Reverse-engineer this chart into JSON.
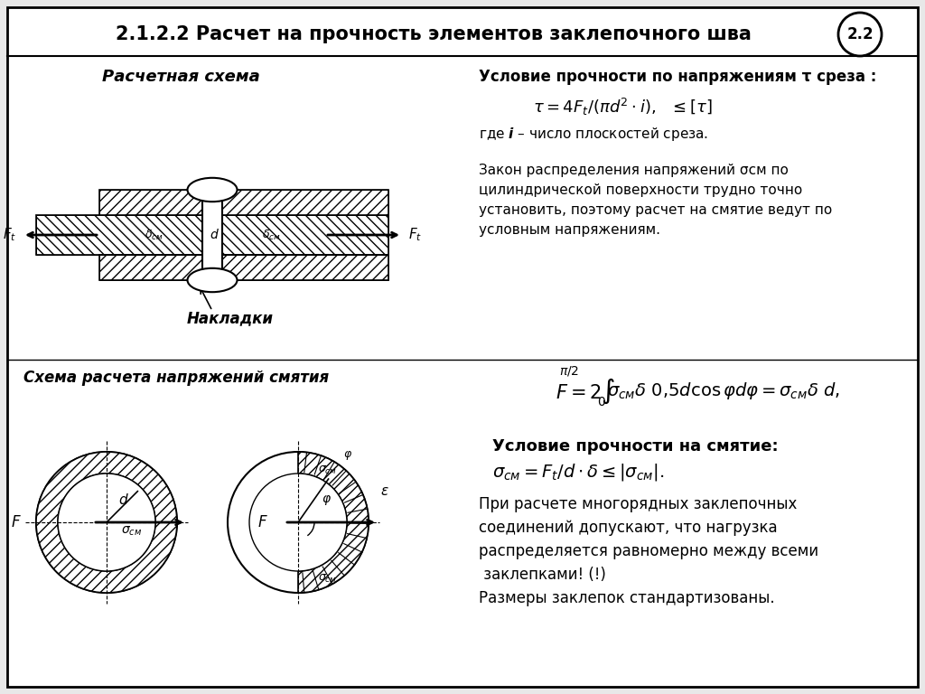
{
  "title": "2.1.2.2 Расчет на прочность элементов заклепочного шва",
  "title_badge": "2.2",
  "bg_color": "#e8e8e8",
  "section1_label": "Расчетная схема",
  "section2_label": "Схема расчета напряжений смятия",
  "condition_shear_title": "Условие прочности по напряжениям τ среза :",
  "where_i": "где i – число плоскостей среза.",
  "law_text1": "Закон распределения напряжений σсм по",
  "law_text2": "цилиндрической поверхности трудно точно",
  "law_text3": "установить, поэтому расчет на смятие ведут по",
  "law_text4": "условным напряжениям.",
  "condition_crush_title": "Условие прочности на смятие:",
  "bottom_text1": "При расчете многорядных заклепочных",
  "bottom_text2": "соединений допускают, что нагрузка",
  "bottom_text3": "распределяется равномерно между всеми",
  "bottom_text4": " заклепками! (!)",
  "bottom_text5": "Размеры заклепок стандартизованы.",
  "text_color": "#000000"
}
